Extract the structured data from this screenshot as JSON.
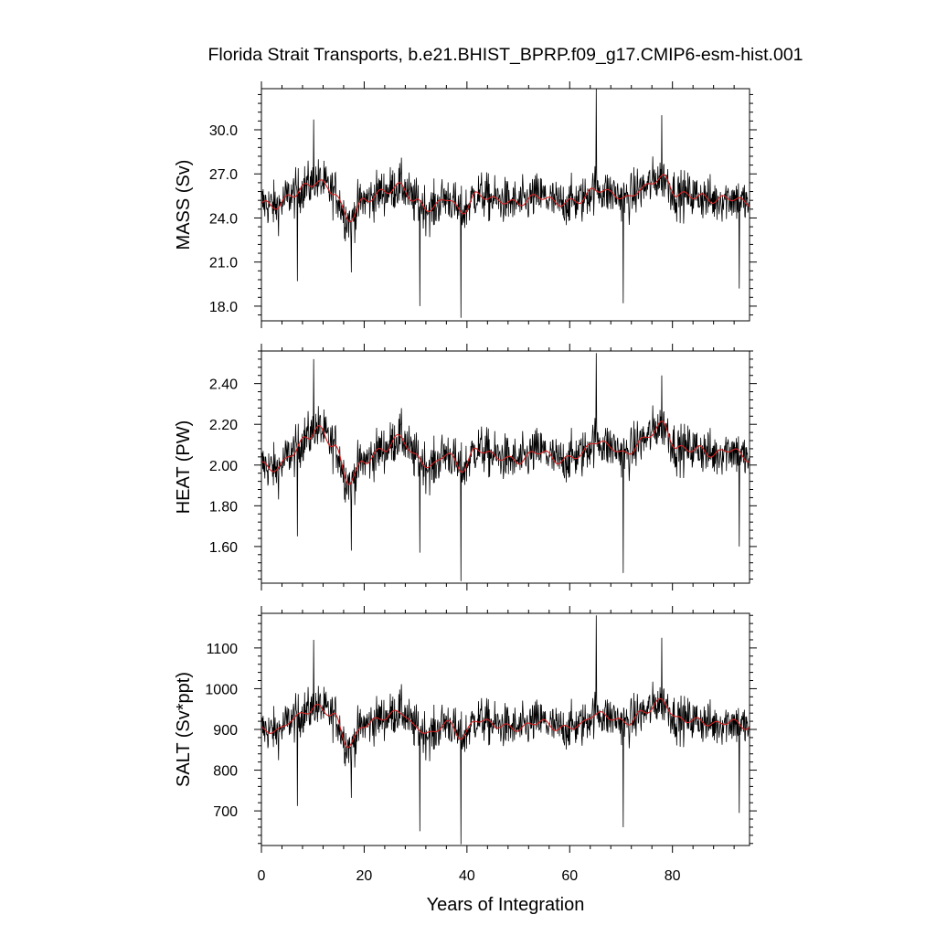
{
  "figure": {
    "title": "Florida Strait Transports, b.e21.BHIST_BPRP.f09_g17.CMIP6-esm-hist.001",
    "xlabel": "Years of Integration"
  },
  "colors": {
    "raw": "#000000",
    "smooth": "#d62020",
    "axes": "#000000"
  },
  "chart_data": [
    {
      "type": "line",
      "ylabel": "MASS (Sv)",
      "xlim": [
        0,
        95
      ],
      "ylim": [
        17,
        32.8
      ],
      "xticks": [
        0,
        20,
        40,
        60,
        80
      ],
      "yticks": [
        18.0,
        21.0,
        24.0,
        27.0,
        30.0
      ],
      "ytick_labels": [
        "18.0",
        "21.0",
        "24.0",
        "27.0",
        "30.0"
      ],
      "baseline": 25.5,
      "raw_amplitude": 1.5,
      "smooth_amplitude": 0.6,
      "anchors": [
        [
          0,
          25.0
        ],
        [
          3,
          24.8
        ],
        [
          6,
          25.6
        ],
        [
          9,
          26.2
        ],
        [
          11,
          26.5
        ],
        [
          14,
          25.8
        ],
        [
          17,
          23.9
        ],
        [
          20,
          25.2
        ],
        [
          24,
          25.8
        ],
        [
          27,
          26.2
        ],
        [
          30,
          25.1
        ],
        [
          33,
          24.6
        ],
        [
          36,
          25.4
        ],
        [
          39,
          24.4
        ],
        [
          42,
          25.6
        ],
        [
          46,
          25.2
        ],
        [
          50,
          25.0
        ],
        [
          54,
          25.5
        ],
        [
          58,
          25.0
        ],
        [
          62,
          25.2
        ],
        [
          65,
          26.0
        ],
        [
          68,
          25.7
        ],
        [
          71,
          25.3
        ],
        [
          74,
          26.0
        ],
        [
          78,
          26.8
        ],
        [
          81,
          25.6
        ],
        [
          85,
          25.5
        ],
        [
          88,
          25.2
        ],
        [
          91,
          25.4
        ],
        [
          95,
          25.0
        ]
      ],
      "extremes": [
        [
          10.2,
          30.7
        ],
        [
          30.8,
          18.0
        ],
        [
          38.8,
          17.2
        ],
        [
          65.2,
          32.8
        ],
        [
          70.4,
          18.2
        ],
        [
          93.0,
          19.2
        ],
        [
          77.9,
          31.0
        ],
        [
          7.0,
          19.7
        ],
        [
          17.5,
          20.3
        ]
      ]
    },
    {
      "type": "line",
      "ylabel": "HEAT (PW)",
      "xlim": [
        0,
        95
      ],
      "ylim": [
        1.42,
        2.56
      ],
      "xticks": [
        0,
        20,
        40,
        60,
        80
      ],
      "yticks": [
        1.6,
        1.8,
        2.0,
        2.2,
        2.4
      ],
      "ytick_labels": [
        "1.60",
        "1.80",
        "2.00",
        "2.20",
        "2.40"
      ],
      "baseline": 2.05,
      "raw_amplitude": 0.11,
      "smooth_amplitude": 0.045,
      "anchors": [
        [
          0,
          2.0
        ],
        [
          3,
          1.98
        ],
        [
          6,
          2.06
        ],
        [
          9,
          2.14
        ],
        [
          11,
          2.18
        ],
        [
          14,
          2.1
        ],
        [
          17,
          1.92
        ],
        [
          20,
          2.02
        ],
        [
          24,
          2.08
        ],
        [
          27,
          2.14
        ],
        [
          30,
          2.04
        ],
        [
          33,
          1.99
        ],
        [
          36,
          2.06
        ],
        [
          39,
          1.98
        ],
        [
          42,
          2.08
        ],
        [
          46,
          2.04
        ],
        [
          50,
          2.02
        ],
        [
          54,
          2.07
        ],
        [
          58,
          2.02
        ],
        [
          62,
          2.05
        ],
        [
          65,
          2.12
        ],
        [
          68,
          2.09
        ],
        [
          71,
          2.05
        ],
        [
          74,
          2.12
        ],
        [
          78,
          2.2
        ],
        [
          81,
          2.08
        ],
        [
          85,
          2.08
        ],
        [
          88,
          2.05
        ],
        [
          91,
          2.08
        ],
        [
          95,
          2.03
        ]
      ],
      "extremes": [
        [
          10.2,
          2.52
        ],
        [
          30.8,
          1.57
        ],
        [
          38.8,
          1.43
        ],
        [
          65.2,
          2.55
        ],
        [
          70.4,
          1.47
        ],
        [
          93.0,
          1.6
        ],
        [
          77.9,
          2.44
        ],
        [
          7.0,
          1.65
        ],
        [
          17.5,
          1.58
        ]
      ]
    },
    {
      "type": "line",
      "ylabel": "SALT (Sv*ppt)",
      "xlim": [
        0,
        95
      ],
      "ylim": [
        615,
        1185
      ],
      "xticks": [
        0,
        20,
        40,
        60,
        80
      ],
      "yticks": [
        700,
        800,
        900,
        1000,
        1100
      ],
      "ytick_labels": [
        "700",
        "800",
        "900",
        "1000",
        "1100"
      ],
      "baseline": 920,
      "raw_amplitude": 52,
      "smooth_amplitude": 20,
      "anchors": [
        [
          0,
          900
        ],
        [
          3,
          895
        ],
        [
          6,
          925
        ],
        [
          9,
          945
        ],
        [
          11,
          955
        ],
        [
          14,
          935
        ],
        [
          17,
          860
        ],
        [
          20,
          912
        ],
        [
          24,
          930
        ],
        [
          27,
          945
        ],
        [
          30,
          905
        ],
        [
          33,
          888
        ],
        [
          36,
          918
        ],
        [
          39,
          882
        ],
        [
          42,
          925
        ],
        [
          46,
          910
        ],
        [
          50,
          902
        ],
        [
          54,
          920
        ],
        [
          58,
          902
        ],
        [
          62,
          910
        ],
        [
          65,
          940
        ],
        [
          68,
          930
        ],
        [
          71,
          915
        ],
        [
          74,
          940
        ],
        [
          78,
          970
        ],
        [
          81,
          925
        ],
        [
          85,
          922
        ],
        [
          88,
          912
        ],
        [
          91,
          920
        ],
        [
          95,
          905
        ]
      ],
      "extremes": [
        [
          10.2,
          1120
        ],
        [
          30.8,
          650
        ],
        [
          38.8,
          618
        ],
        [
          65.2,
          1180
        ],
        [
          70.4,
          660
        ],
        [
          93.0,
          695
        ],
        [
          77.9,
          1125
        ],
        [
          7.0,
          712
        ],
        [
          17.5,
          732
        ]
      ]
    }
  ]
}
